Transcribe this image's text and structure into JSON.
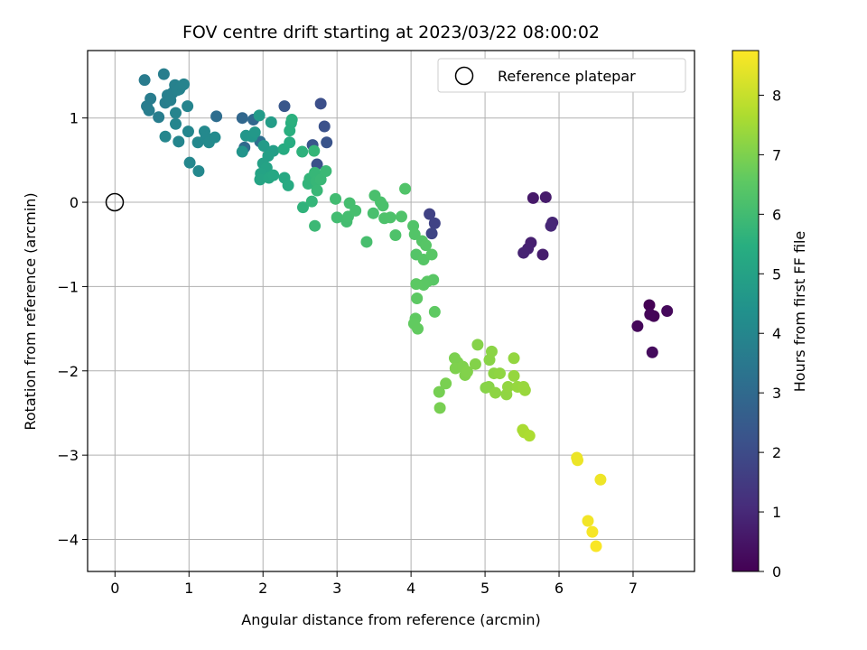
{
  "chart_data": {
    "type": "scatter",
    "title": "FOV centre drift starting at 2023/03/22 08:00:02",
    "xlabel": "Angular distance from reference (arcmin)",
    "ylabel": "Rotation from reference (arcmin)",
    "xlim": [
      -0.37,
      7.83
    ],
    "ylim": [
      -4.38,
      1.8
    ],
    "xticks": [
      "0",
      "1",
      "2",
      "3",
      "4",
      "5",
      "6",
      "7"
    ],
    "yticks": [
      "−4",
      "−3",
      "−2",
      "−1",
      "0",
      "1"
    ],
    "grid": true,
    "legend": {
      "placement": "top-right",
      "entries": [
        "Reference platepar"
      ]
    },
    "reference_point": {
      "x": 0,
      "y": 0,
      "label": "Reference platepar"
    },
    "colorbar": {
      "label": "Hours from first FF file",
      "range": [
        0,
        8.75
      ],
      "ticks": [
        "0",
        "1",
        "2",
        "3",
        "4",
        "5",
        "6",
        "7",
        "8"
      ],
      "colormap": "viridis"
    },
    "points": [
      [
        7.22,
        -1.22,
        0.0
      ],
      [
        7.28,
        -1.35,
        0.05
      ],
      [
        7.23,
        -1.33,
        0.1
      ],
      [
        7.06,
        -1.47,
        0.15
      ],
      [
        7.46,
        -1.29,
        0.2
      ],
      [
        7.26,
        -1.78,
        0.25
      ],
      [
        5.65,
        0.05,
        0.6
      ],
      [
        5.82,
        0.06,
        0.65
      ],
      [
        5.78,
        -0.62,
        0.7
      ],
      [
        5.62,
        -0.48,
        0.75
      ],
      [
        5.58,
        -0.55,
        0.8
      ],
      [
        5.52,
        -0.6,
        0.85
      ],
      [
        5.91,
        -0.24,
        0.9
      ],
      [
        5.89,
        -0.28,
        0.95
      ],
      [
        4.25,
        -0.14,
        1.7
      ],
      [
        4.32,
        -0.25,
        1.75
      ],
      [
        4.28,
        -0.37,
        1.8
      ],
      [
        2.78,
        1.17,
        2.1
      ],
      [
        2.73,
        0.45,
        2.15
      ],
      [
        2.83,
        0.9,
        2.2
      ],
      [
        2.86,
        0.71,
        2.25
      ],
      [
        2.67,
        0.68,
        2.3
      ],
      [
        2.29,
        1.14,
        2.35
      ],
      [
        1.72,
        1.0,
        2.9
      ],
      [
        1.87,
        0.98,
        2.95
      ],
      [
        1.75,
        0.65,
        3.0
      ],
      [
        1.37,
        1.02,
        3.1
      ],
      [
        1.96,
        0.72,
        3.15
      ],
      [
        0.4,
        1.45,
        3.6
      ],
      [
        0.48,
        1.23,
        3.62
      ],
      [
        0.43,
        1.14,
        3.64
      ],
      [
        0.46,
        1.09,
        3.66
      ],
      [
        0.59,
        1.01,
        3.68
      ],
      [
        0.66,
        1.52,
        3.7
      ],
      [
        0.68,
        1.18,
        3.72
      ],
      [
        0.71,
        1.27,
        3.74
      ],
      [
        0.75,
        1.21,
        3.76
      ],
      [
        0.78,
        1.3,
        3.78
      ],
      [
        0.81,
        1.39,
        3.8
      ],
      [
        0.84,
        1.33,
        3.82
      ],
      [
        0.87,
        1.34,
        3.84
      ],
      [
        0.9,
        1.38,
        3.86
      ],
      [
        0.93,
        1.4,
        3.88
      ],
      [
        0.98,
        1.14,
        3.9
      ],
      [
        0.82,
        1.06,
        3.92
      ],
      [
        0.82,
        0.93,
        3.94
      ],
      [
        0.86,
        0.72,
        3.96
      ],
      [
        0.68,
        0.78,
        3.98
      ],
      [
        0.99,
        0.84,
        4.0
      ],
      [
        1.01,
        0.47,
        4.02
      ],
      [
        1.13,
        0.37,
        4.04
      ],
      [
        1.12,
        0.71,
        4.06
      ],
      [
        1.21,
        0.84,
        4.08
      ],
      [
        1.23,
        0.77,
        4.1
      ],
      [
        1.27,
        0.71,
        4.12
      ],
      [
        1.35,
        0.77,
        4.14
      ],
      [
        1.72,
        0.6,
        4.5
      ],
      [
        1.77,
        0.79,
        4.55
      ],
      [
        1.85,
        0.78,
        4.6
      ],
      [
        1.89,
        0.83,
        4.65
      ],
      [
        1.95,
        1.03,
        4.7
      ],
      [
        2.01,
        0.67,
        4.75
      ],
      [
        2.11,
        0.95,
        4.8
      ],
      [
        2.14,
        0.61,
        4.85
      ],
      [
        2.07,
        0.55,
        4.9
      ],
      [
        2.0,
        0.46,
        4.95
      ],
      [
        2.05,
        0.41,
        5.0
      ],
      [
        1.97,
        0.34,
        5.05
      ],
      [
        1.96,
        0.27,
        5.1
      ],
      [
        2.08,
        0.29,
        5.15
      ],
      [
        2.14,
        0.32,
        5.2
      ],
      [
        2.29,
        0.29,
        5.25
      ],
      [
        2.34,
        0.2,
        5.3
      ],
      [
        2.28,
        0.63,
        5.35
      ],
      [
        2.36,
        0.71,
        5.4
      ],
      [
        2.38,
        0.94,
        5.45
      ],
      [
        2.36,
        0.85,
        5.5
      ],
      [
        2.39,
        0.98,
        5.55
      ],
      [
        2.53,
        0.6,
        5.6
      ],
      [
        2.54,
        -0.06,
        5.65
      ],
      [
        2.61,
        0.22,
        5.7
      ],
      [
        2.63,
        0.28,
        5.72
      ],
      [
        2.66,
        0.01,
        5.74
      ],
      [
        2.69,
        0.61,
        5.76
      ],
      [
        2.7,
        0.35,
        5.78
      ],
      [
        2.72,
        0.25,
        5.8
      ],
      [
        2.73,
        0.14,
        5.82
      ],
      [
        2.78,
        0.27,
        5.84
      ],
      [
        2.85,
        0.37,
        5.86
      ],
      [
        2.7,
        -0.28,
        5.88
      ],
      [
        2.98,
        0.04,
        6.0
      ],
      [
        3.0,
        -0.18,
        6.02
      ],
      [
        3.13,
        -0.23,
        6.04
      ],
      [
        3.15,
        -0.17,
        6.06
      ],
      [
        3.17,
        -0.01,
        6.08
      ],
      [
        3.25,
        -0.1,
        6.1
      ],
      [
        3.4,
        -0.47,
        6.12
      ],
      [
        3.49,
        -0.13,
        6.14
      ],
      [
        3.51,
        0.08,
        6.16
      ],
      [
        3.59,
        0.0,
        6.18
      ],
      [
        3.62,
        -0.04,
        6.2
      ],
      [
        3.64,
        -0.19,
        6.22
      ],
      [
        3.72,
        -0.18,
        6.24
      ],
      [
        3.79,
        -0.39,
        6.26
      ],
      [
        3.87,
        -0.17,
        6.28
      ],
      [
        3.92,
        0.16,
        6.3
      ],
      [
        4.03,
        -0.28,
        6.32
      ],
      [
        4.05,
        -0.38,
        6.34
      ],
      [
        4.07,
        -0.62,
        6.36
      ],
      [
        4.15,
        -0.46,
        6.38
      ],
      [
        4.17,
        -0.68,
        6.4
      ],
      [
        4.2,
        -0.51,
        6.42
      ],
      [
        4.28,
        -0.62,
        6.44
      ],
      [
        4.3,
        -0.92,
        6.46
      ],
      [
        4.22,
        -0.94,
        6.48
      ],
      [
        4.17,
        -0.98,
        6.5
      ],
      [
        4.07,
        -0.97,
        6.52
      ],
      [
        4.08,
        -1.14,
        6.54
      ],
      [
        4.32,
        -1.3,
        6.56
      ],
      [
        4.06,
        -1.38,
        6.58
      ],
      [
        4.04,
        -1.44,
        6.6
      ],
      [
        4.09,
        -1.5,
        6.62
      ],
      [
        4.38,
        -2.25,
        6.9
      ],
      [
        4.39,
        -2.44,
        6.92
      ],
      [
        4.47,
        -2.15,
        6.94
      ],
      [
        4.59,
        -1.85,
        6.96
      ],
      [
        4.63,
        -1.9,
        6.98
      ],
      [
        4.6,
        -1.97,
        7.0
      ],
      [
        4.7,
        -1.95,
        7.02
      ],
      [
        4.73,
        -2.05,
        7.04
      ],
      [
        4.76,
        -2.01,
        7.06
      ],
      [
        4.87,
        -1.92,
        7.08
      ],
      [
        4.9,
        -1.69,
        7.1
      ],
      [
        5.01,
        -2.2,
        7.12
      ],
      [
        5.05,
        -2.19,
        7.14
      ],
      [
        5.06,
        -1.87,
        7.16
      ],
      [
        5.09,
        -1.77,
        7.18
      ],
      [
        5.12,
        -2.03,
        7.2
      ],
      [
        5.14,
        -2.26,
        7.22
      ],
      [
        5.2,
        -2.03,
        7.24
      ],
      [
        5.29,
        -2.28,
        7.26
      ],
      [
        5.31,
        -2.19,
        7.28
      ],
      [
        5.39,
        -1.85,
        7.3
      ],
      [
        5.39,
        -2.06,
        7.32
      ],
      [
        5.44,
        -2.19,
        7.34
      ],
      [
        5.52,
        -2.19,
        7.36
      ],
      [
        5.54,
        -2.23,
        7.38
      ],
      [
        5.51,
        -2.7,
        7.6
      ],
      [
        5.53,
        -2.73,
        7.62
      ],
      [
        5.6,
        -2.77,
        7.64
      ],
      [
        6.24,
        -3.03,
        8.5
      ],
      [
        6.25,
        -3.06,
        8.52
      ],
      [
        6.56,
        -3.29,
        8.55
      ],
      [
        6.39,
        -3.78,
        8.6
      ],
      [
        6.45,
        -3.91,
        8.65
      ],
      [
        6.5,
        -4.08,
        8.7
      ]
    ]
  }
}
